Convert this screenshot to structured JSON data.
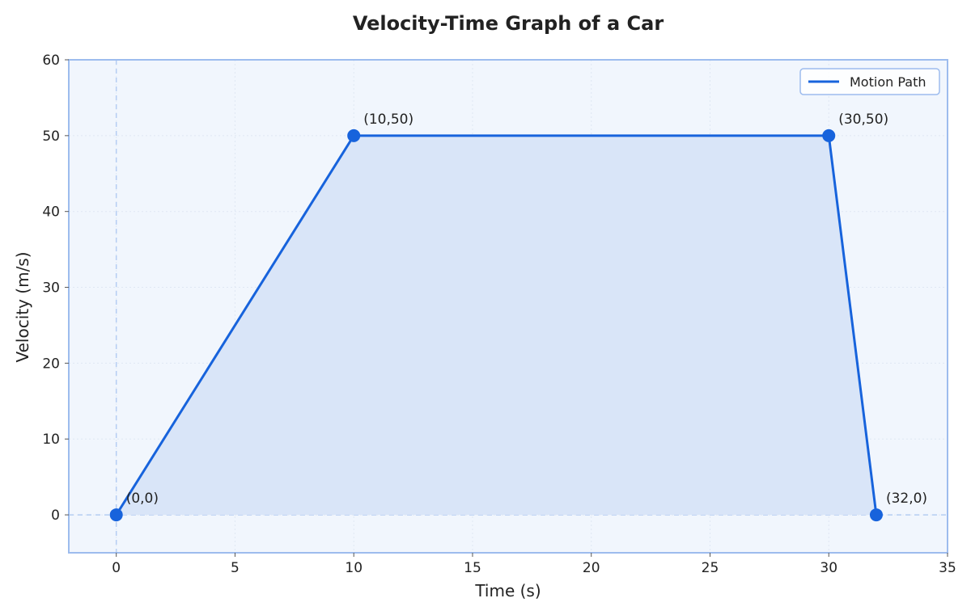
{
  "chart_data": {
    "type": "line",
    "title": "Velocity-Time Graph of a Car",
    "xlabel": "Time (s)",
    "ylabel": "Velocity (m/s)",
    "xlim": [
      -2,
      35
    ],
    "ylim": [
      -5,
      60
    ],
    "xticks": [
      0,
      5,
      10,
      15,
      20,
      25,
      30,
      35
    ],
    "yticks": [
      0,
      10,
      20,
      30,
      40,
      50,
      60
    ],
    "grid": true,
    "legend_position": "top-right",
    "area_fill": true,
    "reference_lines": {
      "x": 0,
      "y": 0
    },
    "series": [
      {
        "name": "Motion Path",
        "points": [
          {
            "x": 0,
            "y": 0,
            "label": "(0,0)"
          },
          {
            "x": 10,
            "y": 50,
            "label": "(10,50)"
          },
          {
            "x": 30,
            "y": 50,
            "label": "(30,50)"
          },
          {
            "x": 32,
            "y": 0,
            "label": "(32,0)"
          }
        ]
      }
    ],
    "colors": {
      "line": "#1763dc",
      "fill": "#d9e5f8",
      "plot_background": "#f1f6fd",
      "frame": "#9dbcee",
      "grid": "#dfe7f3",
      "reference": "#b5cdf3"
    }
  }
}
